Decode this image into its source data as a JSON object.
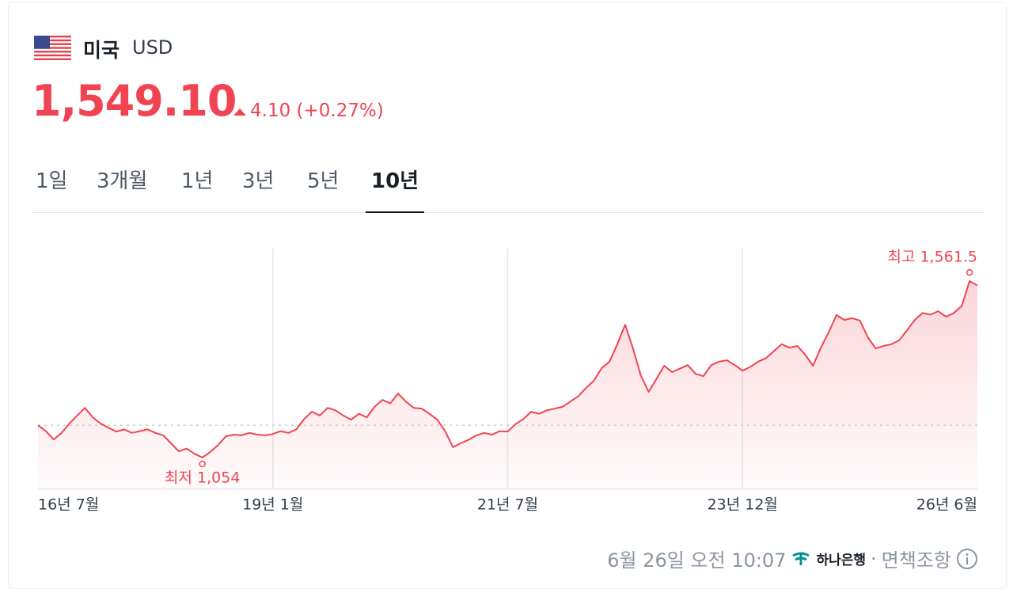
{
  "header": {
    "country": "미국",
    "currency": "USD",
    "price": "1,549.10",
    "change": "4.10 (+0.27%)"
  },
  "tabs": {
    "items": [
      "1일",
      "3개월",
      "1년",
      "3년",
      "5년",
      "10년"
    ],
    "active": 5
  },
  "chart_data": {
    "type": "line",
    "categories": [
      "16년 7월",
      null,
      null,
      null,
      null,
      null,
      null,
      null,
      null,
      null,
      null,
      null,
      null,
      null,
      null,
      null,
      null,
      null,
      null,
      null,
      null,
      null,
      null,
      null,
      null,
      null,
      null,
      null,
      null,
      null,
      "19년 1월",
      null,
      null,
      null,
      null,
      null,
      null,
      null,
      null,
      null,
      null,
      null,
      null,
      null,
      null,
      null,
      null,
      null,
      null,
      null,
      null,
      null,
      null,
      null,
      null,
      null,
      null,
      null,
      null,
      null,
      "21년 7월",
      null,
      null,
      null,
      null,
      null,
      null,
      null,
      null,
      null,
      null,
      null,
      null,
      null,
      null,
      null,
      null,
      null,
      null,
      null,
      null,
      null,
      null,
      null,
      null,
      null,
      null,
      null,
      null,
      null,
      "23년 12월",
      null,
      null,
      null,
      null,
      null,
      null,
      null,
      null,
      null,
      null,
      null,
      null,
      null,
      null,
      null,
      null,
      null,
      null,
      null,
      null,
      null,
      null,
      null,
      null,
      null,
      null,
      null,
      null,
      null,
      "26년 6월"
    ],
    "series": [
      {
        "color": "#f04452",
        "values": [
          1147,
          1130,
          1106,
          1125,
          1152,
          1175,
          1197,
          1170,
          1152,
          1140,
          1129,
          1135,
          1125,
          1130,
          1135,
          1125,
          1118,
          1095,
          1072,
          1080,
          1065,
          1054,
          1070,
          1090,
          1115,
          1120,
          1118,
          1125,
          1120,
          1118,
          1122,
          1130,
          1125,
          1135,
          1165,
          1186,
          1175,
          1197,
          1190,
          1175,
          1163,
          1180,
          1170,
          1200,
          1220,
          1210,
          1238,
          1215,
          1197,
          1195,
          1180,
          1163,
          1130,
          1084,
          1095,
          1105,
          1118,
          1125,
          1120,
          1130,
          1129,
          1150,
          1165,
          1186,
          1180,
          1190,
          1195,
          1200,
          1215,
          1230,
          1254,
          1275,
          1311,
          1330,
          1380,
          1436,
          1368,
          1290,
          1243,
          1280,
          1318,
          1300,
          1310,
          1320,
          1295,
          1288,
          1320,
          1330,
          1334,
          1320,
          1304,
          1315,
          1330,
          1340,
          1360,
          1380,
          1370,
          1375,
          1350,
          1318,
          1370,
          1414,
          1464,
          1450,
          1455,
          1448,
          1400,
          1368,
          1375,
          1380,
          1391,
          1420,
          1450,
          1470,
          1465,
          1475,
          1459,
          1470,
          1490,
          1561.5,
          1549.1
        ]
      }
    ],
    "ylim": [
      963,
      1655
    ],
    "annotations": [
      {
        "text": "최저 1,054",
        "point": 21
      },
      {
        "text": "최고 1,561.5",
        "point": 119
      }
    ]
  },
  "footer": {
    "timestamp": "6월 26일 오전 10:07",
    "bank": "하나은행",
    "separator": "·",
    "disclaimer": "면책조항"
  }
}
